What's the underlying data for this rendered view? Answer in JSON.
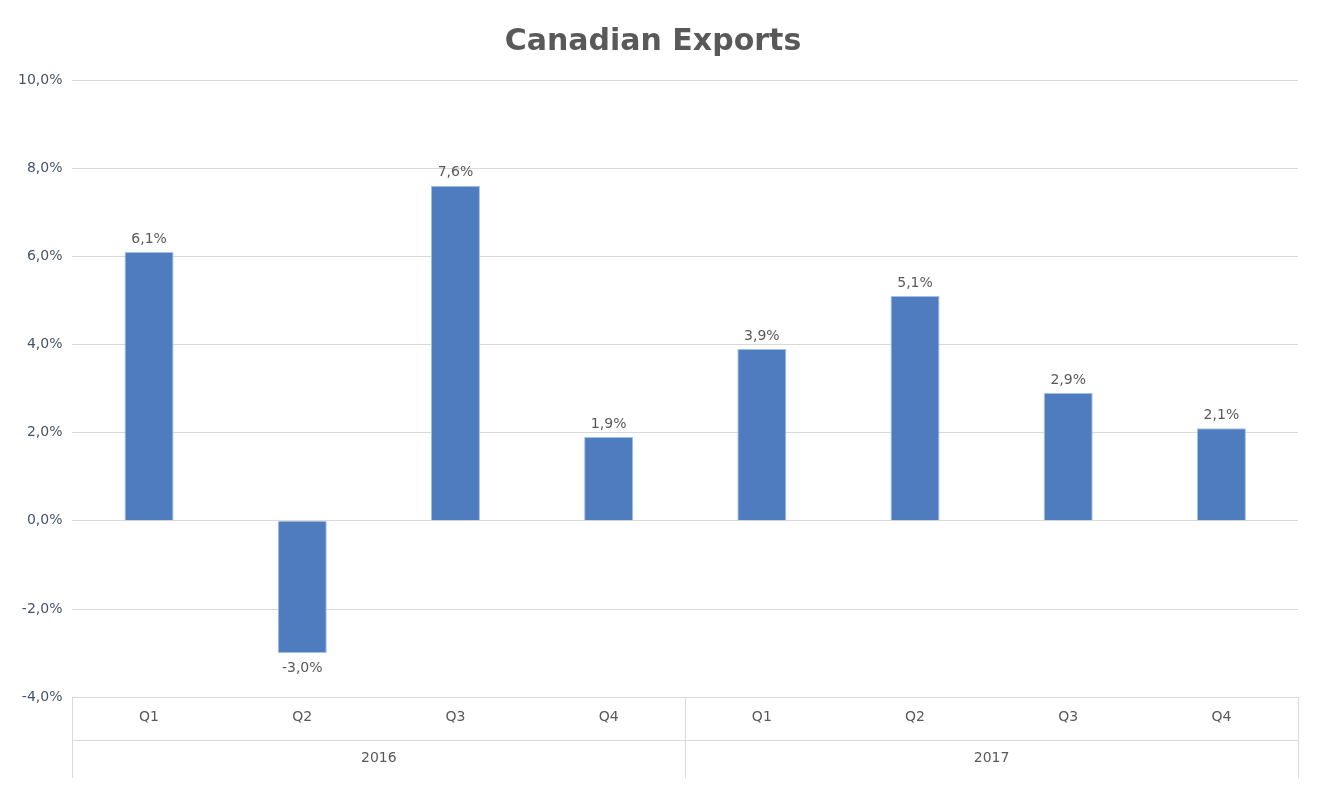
{
  "chart_data": {
    "type": "bar",
    "title": "Canadian Exports",
    "categories": [
      "Q1",
      "Q2",
      "Q3",
      "Q4",
      "Q1",
      "Q2",
      "Q3",
      "Q4"
    ],
    "values": [
      6.1,
      -3.0,
      7.6,
      1.9,
      3.9,
      5.1,
      2.9,
      2.1
    ],
    "value_labels": [
      "6,1%",
      "-3,0%",
      "7,6%",
      "1,9%",
      "3,9%",
      "5,1%",
      "2,9%",
      "2,1%"
    ],
    "color": "#4f7bbf",
    "ylim": [
      -4,
      10
    ],
    "yticks": [
      {
        "value": -4,
        "label": "-4,0%"
      },
      {
        "value": -2,
        "label": "-2,0%"
      },
      {
        "value": 0,
        "label": "0,0%"
      },
      {
        "value": 2,
        "label": "2,0%"
      },
      {
        "value": 4,
        "label": "4,0%"
      },
      {
        "value": 6,
        "label": "6,0%"
      },
      {
        "value": 8,
        "label": "8,0%"
      },
      {
        "value": 10,
        "label": "10,0%"
      }
    ],
    "annotations": [
      "2016",
      "2017"
    ],
    "grid": "y",
    "legend": false
  }
}
